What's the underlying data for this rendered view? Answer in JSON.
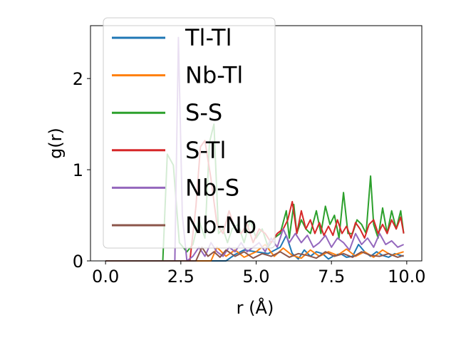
{
  "chart_data": {
    "type": "line",
    "title": "",
    "xlabel": "r (Å)",
    "ylabel": "g(r)",
    "xlim": [
      -0.5,
      10.5
    ],
    "ylim": [
      0,
      2.58
    ],
    "xticks": [
      0.0,
      2.5,
      5.0,
      7.5,
      10.0
    ],
    "xtick_labels": [
      "0.0",
      "2.5",
      "5.0",
      "7.5",
      "10.0"
    ],
    "yticks": [
      0,
      1,
      2
    ],
    "ytick_labels": [
      "0",
      "1",
      "2"
    ],
    "grid": false,
    "legend_position": "upper-left",
    "series": [
      {
        "name": "Tl-Tl",
        "color": "#1f77b4",
        "x": [
          0.0,
          4.0,
          4.3,
          4.6,
          5.0,
          5.4,
          5.8,
          6.0,
          6.2,
          6.4,
          6.6,
          6.8,
          7.0,
          7.2,
          7.4,
          7.6,
          7.8,
          8.0,
          8.2,
          8.4,
          8.6,
          8.8,
          9.0,
          9.2,
          9.4,
          9.6,
          9.9
        ],
        "y": [
          0.0,
          0.0,
          0.07,
          0.12,
          0.1,
          0.08,
          0.15,
          0.28,
          0.08,
          0.02,
          0.12,
          0.05,
          0.1,
          0.08,
          0.02,
          0.06,
          0.08,
          0.04,
          0.05,
          0.18,
          0.1,
          0.05,
          0.1,
          0.06,
          0.04,
          0.08,
          0.05
        ]
      },
      {
        "name": "Nb-Tl",
        "color": "#ff7f0e",
        "x": [
          0.0,
          3.5,
          3.7,
          4.0,
          4.3,
          4.6,
          5.0,
          5.3,
          5.6,
          5.9,
          6.2,
          6.5,
          6.8,
          7.1,
          7.4,
          7.7,
          8.0,
          8.3,
          8.6,
          8.9,
          9.2,
          9.5,
          9.9
        ],
        "y": [
          0.0,
          0.0,
          0.15,
          0.05,
          0.12,
          0.04,
          0.1,
          0.18,
          0.05,
          0.14,
          0.06,
          0.03,
          0.12,
          0.05,
          0.1,
          0.06,
          0.13,
          0.05,
          0.1,
          0.04,
          0.12,
          0.06,
          0.1
        ]
      },
      {
        "name": "S-S",
        "color": "#2ca02c",
        "x": [
          0.0,
          1.9,
          2.05,
          2.25,
          2.45,
          2.7,
          2.9,
          3.1,
          3.3,
          3.45,
          3.6,
          3.75,
          3.9,
          4.05,
          4.2,
          4.4,
          4.6,
          4.8,
          5.0,
          5.2,
          5.4,
          5.6,
          5.8,
          6.0,
          6.1,
          6.25,
          6.35,
          6.5,
          6.65,
          6.8,
          7.0,
          7.15,
          7.3,
          7.45,
          7.6,
          7.75,
          7.9,
          8.05,
          8.2,
          8.35,
          8.5,
          8.65,
          8.8,
          8.9,
          9.05,
          9.2,
          9.35,
          9.5,
          9.65,
          9.8,
          9.9
        ],
        "y": [
          0.0,
          0.0,
          1.17,
          1.05,
          0.2,
          0.1,
          0.18,
          0.45,
          0.25,
          1.3,
          1.5,
          0.3,
          0.35,
          0.2,
          0.35,
          0.4,
          0.2,
          0.45,
          0.25,
          0.35,
          0.15,
          0.25,
          0.3,
          0.55,
          0.25,
          0.62,
          0.3,
          0.45,
          0.35,
          0.3,
          0.55,
          0.3,
          0.6,
          0.4,
          0.5,
          0.25,
          0.75,
          0.3,
          0.3,
          0.45,
          0.4,
          0.3,
          0.93,
          0.4,
          0.25,
          0.58,
          0.3,
          0.55,
          0.35,
          0.55,
          0.3
        ]
      },
      {
        "name": "S-Tl",
        "color": "#d62728",
        "x": [
          0.0,
          2.8,
          3.0,
          3.15,
          3.3,
          3.5,
          3.7,
          3.9,
          4.1,
          4.3,
          4.5,
          4.7,
          4.9,
          5.1,
          5.3,
          5.5,
          5.7,
          5.9,
          6.05,
          6.2,
          6.35,
          6.5,
          6.65,
          6.8,
          6.95,
          7.1,
          7.25,
          7.4,
          7.55,
          7.7,
          7.85,
          8.0,
          8.15,
          8.3,
          8.45,
          8.6,
          8.75,
          8.9,
          9.05,
          9.2,
          9.35,
          9.5,
          9.65,
          9.8,
          9.9
        ],
        "y": [
          0.0,
          0.0,
          0.6,
          1.25,
          1.32,
          0.9,
          0.4,
          0.3,
          0.55,
          0.35,
          0.3,
          0.4,
          0.2,
          0.35,
          0.3,
          0.2,
          0.3,
          0.35,
          0.45,
          0.65,
          0.3,
          0.55,
          0.35,
          0.45,
          0.3,
          0.42,
          0.28,
          0.38,
          0.28,
          0.45,
          0.3,
          0.38,
          0.25,
          0.42,
          0.35,
          0.25,
          0.4,
          0.45,
          0.3,
          0.4,
          0.3,
          0.45,
          0.35,
          0.48,
          0.3
        ]
      },
      {
        "name": "Nb-S",
        "color": "#9467bd",
        "x": [
          0.0,
          2.3,
          2.42,
          2.55,
          2.7,
          2.9,
          3.1,
          3.3,
          3.5,
          3.7,
          3.9,
          4.1,
          4.3,
          4.5,
          4.7,
          4.9,
          5.1,
          5.3,
          5.5,
          5.7,
          5.9,
          6.1,
          6.3,
          6.5,
          6.7,
          6.9,
          7.1,
          7.3,
          7.5,
          7.7,
          7.9,
          8.1,
          8.3,
          8.5,
          8.7,
          8.9,
          9.1,
          9.3,
          9.5,
          9.7,
          9.9
        ],
        "y": [
          0.0,
          0.0,
          2.45,
          0.5,
          0.0,
          0.05,
          0.15,
          0.05,
          0.2,
          0.1,
          0.05,
          0.15,
          0.1,
          0.2,
          0.1,
          0.15,
          0.2,
          0.1,
          0.25,
          0.15,
          0.35,
          0.2,
          0.3,
          0.2,
          0.28,
          0.15,
          0.2,
          0.28,
          0.15,
          0.25,
          0.2,
          0.12,
          0.3,
          0.18,
          0.25,
          0.15,
          0.3,
          0.18,
          0.22,
          0.15,
          0.18
        ]
      },
      {
        "name": "Nb-Nb",
        "color": "#8c564b",
        "x": [
          0.0,
          3.0,
          3.2,
          3.4,
          3.6,
          3.8,
          4.0,
          4.3,
          4.6,
          4.9,
          5.2,
          5.5,
          5.8,
          6.1,
          6.4,
          6.7,
          7.0,
          7.3,
          7.6,
          7.9,
          8.2,
          8.5,
          8.8,
          9.1,
          9.4,
          9.7,
          9.9
        ],
        "y": [
          0.0,
          0.0,
          0.15,
          0.05,
          0.1,
          0.04,
          0.12,
          0.05,
          0.1,
          0.03,
          0.08,
          0.05,
          0.1,
          0.04,
          0.08,
          0.06,
          0.03,
          0.1,
          0.05,
          0.08,
          0.04,
          0.1,
          0.06,
          0.05,
          0.08,
          0.04,
          0.06
        ]
      }
    ]
  }
}
